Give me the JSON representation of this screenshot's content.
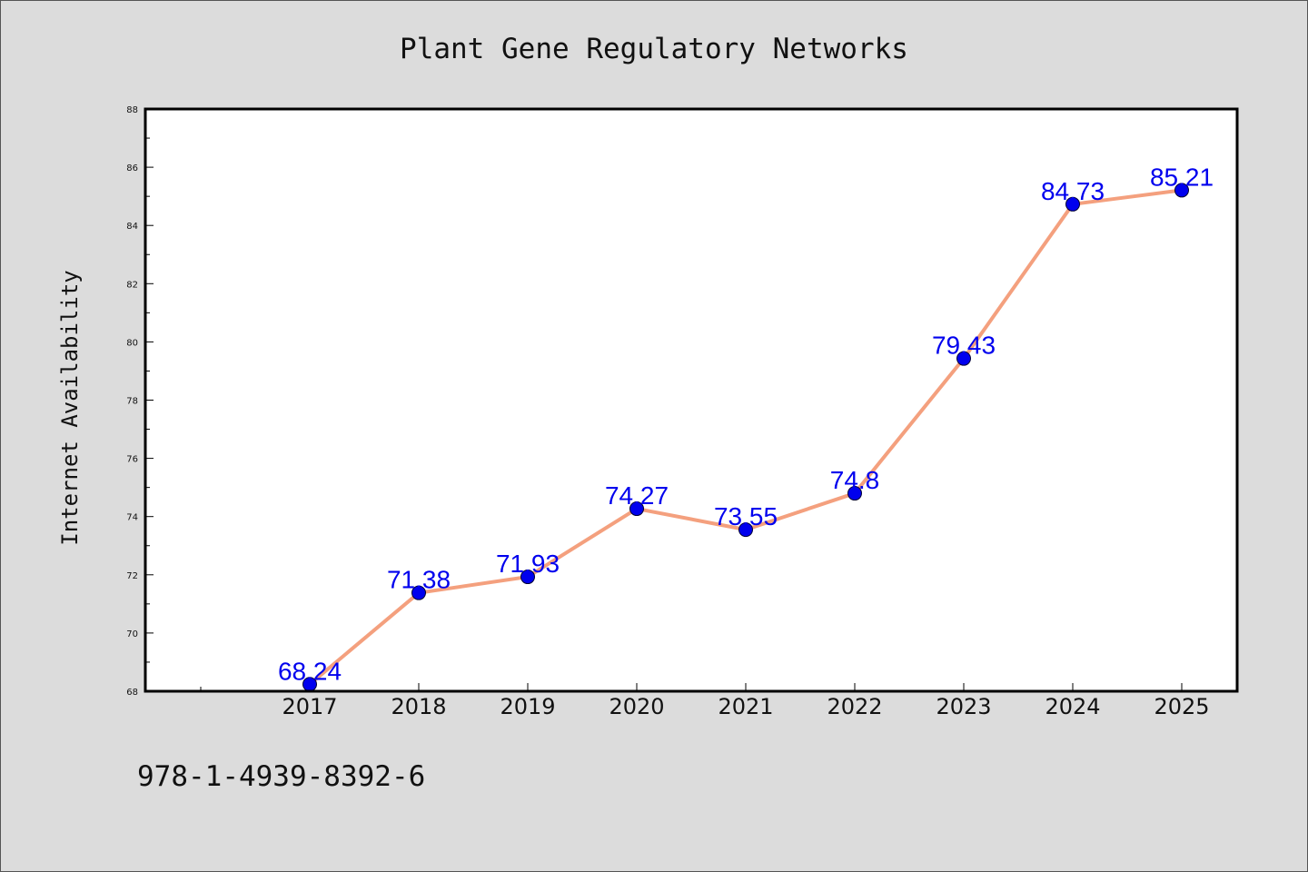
{
  "chart_data": {
    "type": "line",
    "title": "Plant Gene Regulatory Networks",
    "xlabel": "",
    "ylabel": "Internet Availability",
    "categories": [
      "2017",
      "2018",
      "2019",
      "2020",
      "2021",
      "2022",
      "2023",
      "2024",
      "2025"
    ],
    "values": [
      68.24,
      71.38,
      71.93,
      74.27,
      73.55,
      74.8,
      79.43,
      84.73,
      85.21
    ],
    "ylim": [
      68,
      88
    ],
    "yticks": [
      68,
      70,
      72,
      74,
      76,
      78,
      80,
      82,
      84,
      86,
      88
    ],
    "grid": false,
    "legend": "none",
    "colors": {
      "line": "#f4a07e",
      "marker": "#0000ee",
      "data_label": "#0000ee",
      "background": "#dcdcdc",
      "plot_area": "#ffffff"
    }
  },
  "footer": {
    "isbn": "978-1-4939-8392-6"
  }
}
